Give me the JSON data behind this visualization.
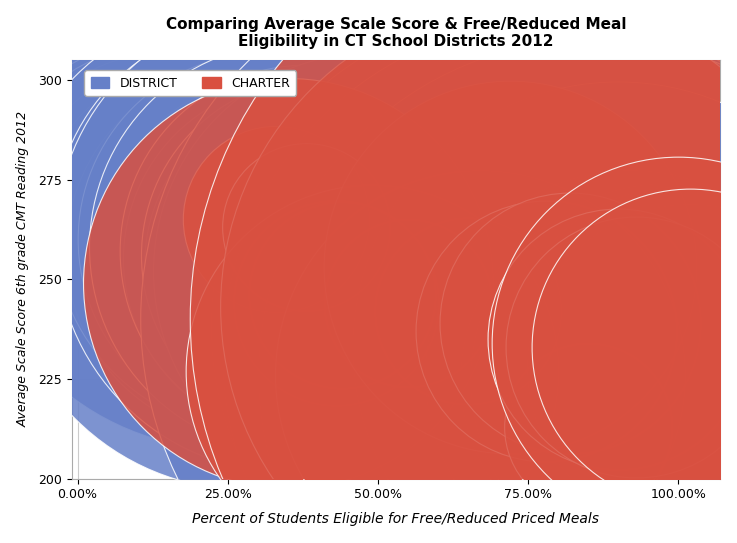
{
  "title": "Comparing Average Scale Score & Free/Reduced Meal\nEligibility in CT School Districts 2012",
  "xlabel": "Percent of Students Eligible for Free/Reduced Priced Meals",
  "ylabel": "Average Scale Score 6th grade CMT Reading 2012",
  "xlim": [
    -0.01,
    1.07
  ],
  "ylim": [
    200,
    305
  ],
  "yticks": [
    200,
    225,
    250,
    275,
    300
  ],
  "xticks": [
    0.0,
    0.25,
    0.5,
    0.75,
    1.0
  ],
  "xtick_labels": [
    "0.00%",
    "25.00%",
    "50.00%",
    "75.00%",
    "100.00%"
  ],
  "district_color": "#6680C8",
  "charter_color": "#D95040",
  "background_color": "#FFFFFF",
  "grid_color": "#CCCCCC",
  "size_scale": 1.8,
  "district_data": [
    [
      0.01,
      284,
      120
    ],
    [
      0.02,
      283,
      130
    ],
    [
      0.02,
      286,
      160
    ],
    [
      0.03,
      285,
      140
    ],
    [
      0.03,
      288,
      180
    ],
    [
      0.04,
      284,
      150
    ],
    [
      0.04,
      286,
      170
    ],
    [
      0.05,
      287,
      160
    ],
    [
      0.05,
      283,
      130
    ],
    [
      0.06,
      285,
      150
    ],
    [
      0.06,
      282,
      120
    ],
    [
      0.07,
      281,
      130
    ],
    [
      0.07,
      279,
      120
    ],
    [
      0.08,
      283,
      150
    ],
    [
      0.08,
      280,
      140
    ],
    [
      0.09,
      278,
      130
    ],
    [
      0.09,
      276,
      120
    ],
    [
      0.1,
      274,
      110
    ],
    [
      0.1,
      277,
      130
    ],
    [
      0.11,
      275,
      120
    ],
    [
      0.11,
      273,
      110
    ],
    [
      0.12,
      276,
      130
    ],
    [
      0.12,
      274,
      120
    ],
    [
      0.13,
      272,
      110
    ],
    [
      0.13,
      270,
      100
    ],
    [
      0.14,
      272,
      120
    ],
    [
      0.14,
      268,
      100
    ],
    [
      0.15,
      270,
      110
    ],
    [
      0.15,
      267,
      100
    ],
    [
      0.16,
      268,
      110
    ],
    [
      0.16,
      266,
      100
    ],
    [
      0.17,
      264,
      95
    ],
    [
      0.18,
      266,
      105
    ],
    [
      0.18,
      263,
      95
    ],
    [
      0.19,
      265,
      100
    ],
    [
      0.19,
      262,
      90
    ],
    [
      0.2,
      263,
      100
    ],
    [
      0.2,
      261,
      90
    ],
    [
      0.21,
      262,
      100
    ],
    [
      0.22,
      260,
      90
    ],
    [
      0.23,
      252,
      100
    ],
    [
      0.24,
      261,
      110
    ],
    [
      0.25,
      273,
      280
    ],
    [
      0.26,
      260,
      140
    ],
    [
      0.27,
      259,
      130
    ],
    [
      0.28,
      258,
      260
    ],
    [
      0.29,
      257,
      200
    ],
    [
      0.3,
      263,
      220
    ],
    [
      0.31,
      260,
      200
    ],
    [
      0.32,
      258,
      180
    ],
    [
      0.33,
      257,
      160
    ],
    [
      0.34,
      256,
      150
    ],
    [
      0.35,
      260,
      250
    ],
    [
      0.36,
      258,
      220
    ],
    [
      0.37,
      255,
      190
    ],
    [
      0.38,
      257,
      200
    ],
    [
      0.39,
      254,
      180
    ],
    [
      0.4,
      256,
      190
    ],
    [
      0.41,
      253,
      170
    ],
    [
      0.42,
      255,
      185
    ],
    [
      0.43,
      252,
      160
    ],
    [
      0.44,
      254,
      175
    ],
    [
      0.45,
      251,
      165
    ],
    [
      0.46,
      253,
      195
    ],
    [
      0.47,
      250,
      160
    ],
    [
      0.48,
      249,
      175
    ],
    [
      0.49,
      252,
      235
    ],
    [
      0.5,
      248,
      165
    ],
    [
      0.51,
      250,
      190
    ],
    [
      0.52,
      247,
      160
    ],
    [
      0.53,
      249,
      175
    ],
    [
      0.55,
      246,
      155
    ],
    [
      0.56,
      248,
      170
    ],
    [
      0.58,
      245,
      160
    ],
    [
      0.6,
      243,
      175
    ],
    [
      0.62,
      241,
      165
    ],
    [
      0.65,
      242,
      185
    ],
    [
      0.67,
      238,
      165
    ],
    [
      0.7,
      239,
      175
    ],
    [
      0.71,
      240,
      390
    ],
    [
      0.73,
      237,
      195
    ],
    [
      0.74,
      236,
      180
    ],
    [
      0.75,
      238,
      340
    ],
    [
      0.76,
      235,
      310
    ],
    [
      0.77,
      234,
      195
    ],
    [
      0.78,
      232,
      175
    ],
    [
      0.79,
      233,
      160
    ],
    [
      0.8,
      231,
      360
    ],
    [
      0.81,
      230,
      220
    ],
    [
      0.82,
      229,
      195
    ],
    [
      0.83,
      228,
      175
    ],
    [
      0.85,
      227,
      165
    ],
    [
      0.86,
      226,
      360
    ],
    [
      0.87,
      225,
      195
    ],
    [
      0.88,
      224,
      175
    ],
    [
      0.9,
      233,
      285
    ],
    [
      0.92,
      226,
      220
    ],
    [
      0.94,
      225,
      195
    ],
    [
      0.96,
      224,
      175
    ],
    [
      0.98,
      225,
      210
    ],
    [
      1.0,
      230,
      185
    ],
    [
      1.02,
      228,
      175
    ]
  ],
  "charter_data": [
    [
      0.33,
      265,
      100
    ],
    [
      0.35,
      249,
      220
    ],
    [
      0.38,
      263,
      90
    ],
    [
      0.43,
      244,
      110
    ],
    [
      0.44,
      246,
      100
    ],
    [
      0.49,
      227,
      200
    ],
    [
      0.55,
      244,
      90
    ],
    [
      0.65,
      242,
      100
    ],
    [
      0.67,
      226,
      220
    ],
    [
      0.72,
      253,
      200
    ],
    [
      0.75,
      243,
      330
    ],
    [
      0.78,
      237,
      140
    ],
    [
      0.82,
      239,
      140
    ],
    [
      0.85,
      213,
      90
    ],
    [
      0.87,
      240,
      440
    ],
    [
      0.9,
      235,
      140
    ],
    [
      0.93,
      233,
      140
    ],
    [
      1.0,
      234,
      200
    ],
    [
      1.02,
      233,
      170
    ]
  ]
}
